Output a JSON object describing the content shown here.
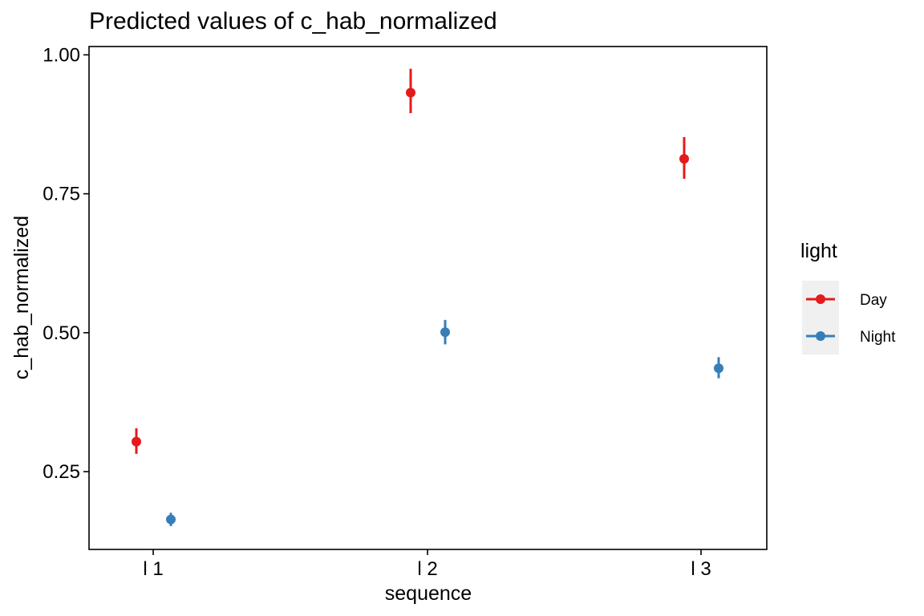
{
  "chart_data": {
    "type": "scatter",
    "title": "Predicted values of c_hab_normalized",
    "xlabel": "sequence",
    "ylabel": "c_hab_normalized",
    "categories": [
      "l 1",
      "l 2",
      "l 3"
    ],
    "ylim": [
      0.11,
      1.015
    ],
    "yticks": [
      0.25,
      0.5,
      0.75,
      1.0
    ],
    "ytick_labels": [
      "0.25",
      "0.50",
      "0.75",
      "1.00"
    ],
    "grid": false,
    "legend": {
      "title": "light",
      "placement": "right",
      "entries": [
        "Day",
        "Night"
      ]
    },
    "series": [
      {
        "name": "Day",
        "color": "#e41a1c",
        "values": [
          0.304,
          0.932,
          0.813
        ],
        "lower": [
          0.282,
          0.895,
          0.777
        ],
        "upper": [
          0.328,
          0.975,
          0.852
        ]
      },
      {
        "name": "Night",
        "color": "#377eb8",
        "values": [
          0.164,
          0.501,
          0.436
        ],
        "lower": [
          0.152,
          0.479,
          0.418
        ],
        "upper": [
          0.176,
          0.523,
          0.456
        ]
      }
    ]
  }
}
